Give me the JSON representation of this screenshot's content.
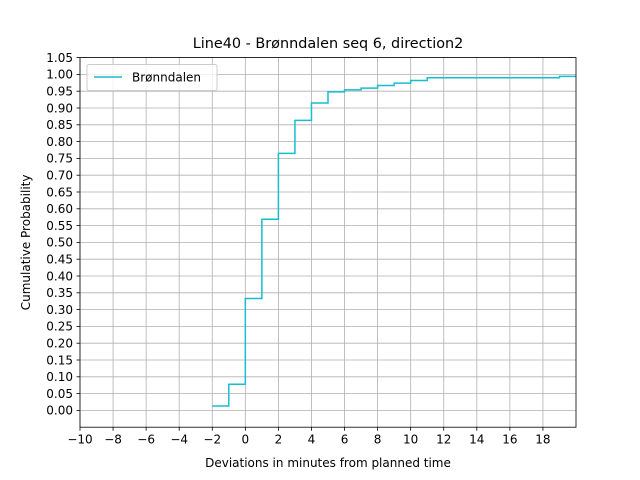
{
  "chart_data": {
    "type": "line",
    "drawstyle": "steps-post",
    "title": "Line40 - Brønndalen seq 6, direction2",
    "xlabel": "Deviations in minutes from planned time",
    "ylabel": "Cumulative Probability",
    "xlim": [
      -10,
      20
    ],
    "ylim": [
      -0.05,
      1.05
    ],
    "xticks": [
      -10,
      -8,
      -6,
      -4,
      -2,
      0,
      2,
      4,
      6,
      8,
      10,
      12,
      14,
      16,
      18
    ],
    "xtick_labels": [
      "−10",
      "−8",
      "−6",
      "−4",
      "−2",
      "0",
      "2",
      "4",
      "6",
      "8",
      "10",
      "12",
      "14",
      "16",
      "18"
    ],
    "yticks": [
      0.0,
      0.05,
      0.1,
      0.15,
      0.2,
      0.25,
      0.3,
      0.35,
      0.4,
      0.45,
      0.5,
      0.55,
      0.6,
      0.65,
      0.7,
      0.75,
      0.8,
      0.85,
      0.9,
      0.95,
      1.0,
      1.05
    ],
    "ytick_labels": [
      "0.00",
      "0.05",
      "0.10",
      "0.15",
      "0.20",
      "0.25",
      "0.30",
      "0.35",
      "0.40",
      "0.45",
      "0.50",
      "0.55",
      "0.60",
      "0.65",
      "0.70",
      "0.75",
      "0.80",
      "0.85",
      "0.90",
      "0.95",
      "1.00",
      "1.05"
    ],
    "grid": true,
    "legend_position": "upper-left",
    "series": [
      {
        "name": "Brønndalen",
        "color": "#17becf",
        "x": [
          -2,
          -1,
          0,
          1,
          2,
          3,
          4,
          5,
          6,
          7,
          8,
          9,
          10,
          11,
          12,
          13,
          14,
          15,
          16,
          17,
          18,
          19,
          20
        ],
        "y": [
          0.013,
          0.078,
          0.333,
          0.569,
          0.765,
          0.863,
          0.915,
          0.948,
          0.954,
          0.959,
          0.967,
          0.974,
          0.982,
          0.99,
          0.99,
          0.99,
          0.99,
          0.99,
          0.99,
          0.99,
          0.99,
          0.994,
          0.994
        ]
      }
    ]
  }
}
